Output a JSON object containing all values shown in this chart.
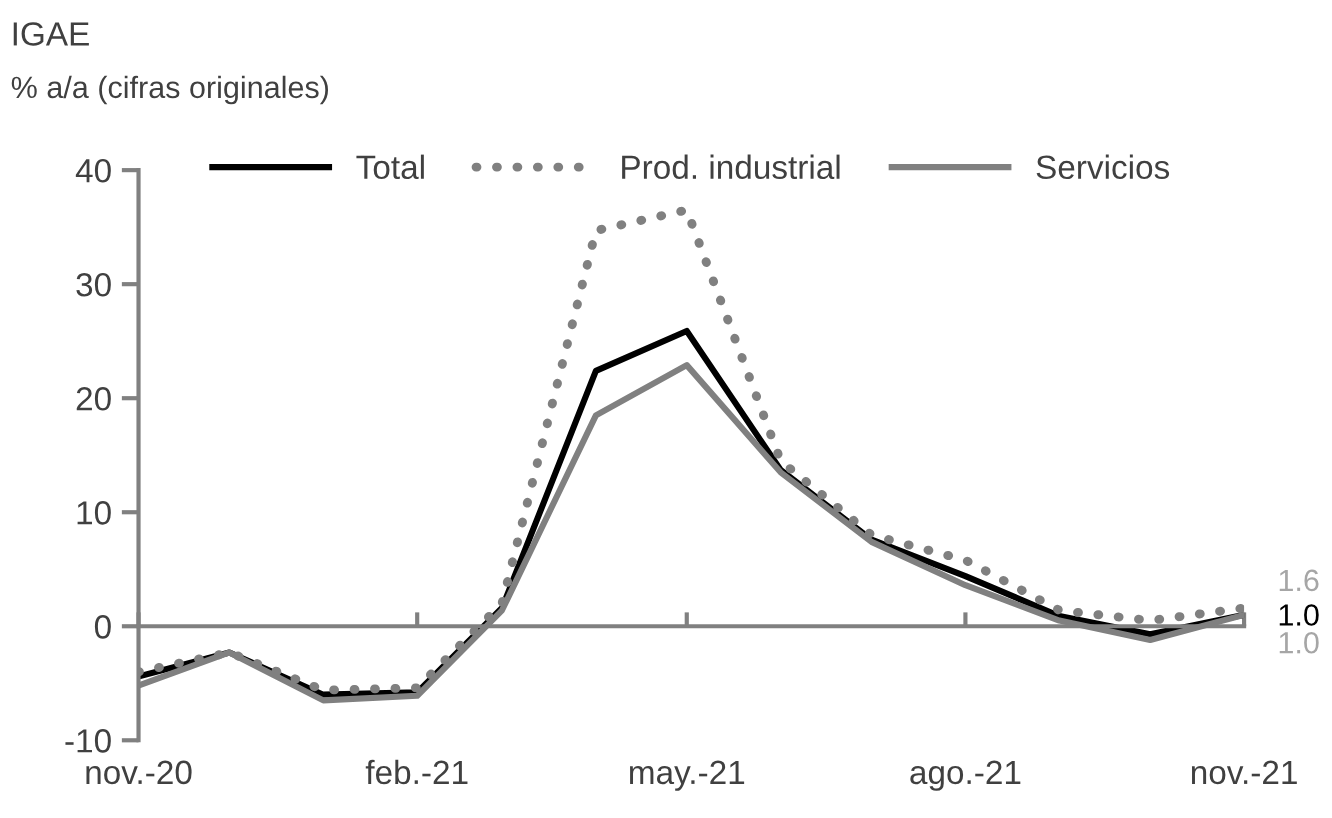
{
  "chart_data": {
    "type": "line",
    "title": "IGAE",
    "subtitle": "% a/a (cifras originales)",
    "x": [
      "2020-11",
      "2020-12",
      "2021-01",
      "2021-02",
      "2021-03",
      "2021-04",
      "2021-05",
      "2021-06",
      "2021-07",
      "2021-08",
      "2021-09",
      "2021-10",
      "2021-11"
    ],
    "series": [
      {
        "name": "Total",
        "color": "#000000",
        "line_style": "solid",
        "values": [
          -4.4,
          -2.3,
          -6.0,
          -5.8,
          1.6,
          22.4,
          25.9,
          13.7,
          7.6,
          4.4,
          0.9,
          -0.7,
          1.0
        ],
        "value_labels": [
          null,
          null,
          null,
          null,
          null,
          null,
          null,
          null,
          null,
          null,
          null,
          null,
          "1.0"
        ]
      },
      {
        "name": "Prod. industrial",
        "color": "#808080",
        "line_style": "dotted",
        "values": [
          -4.0,
          -2.3,
          -5.6,
          -5.4,
          2.0,
          34.7,
          36.5,
          14.5,
          8.0,
          5.8,
          1.4,
          0.5,
          1.6
        ],
        "value_labels": [
          null,
          null,
          null,
          null,
          null,
          null,
          null,
          null,
          null,
          null,
          null,
          null,
          "1.6"
        ]
      },
      {
        "name": "Servicios",
        "color": "#808080",
        "line_style": "solid",
        "values": [
          -5.2,
          -2.3,
          -6.5,
          -6.1,
          1.4,
          18.5,
          22.9,
          13.5,
          7.4,
          3.6,
          0.5,
          -1.2,
          1.0
        ],
        "value_labels": [
          null,
          null,
          null,
          null,
          null,
          null,
          null,
          null,
          null,
          null,
          null,
          null,
          "1.0"
        ]
      }
    ],
    "xlim": [
      "2020-11",
      "2021-11"
    ],
    "xticks": [
      {
        "value": "2020-11",
        "label": "nov.-20"
      },
      {
        "value": "2021-02",
        "label": "feb.-21"
      },
      {
        "value": "2021-05",
        "label": "may.-21"
      },
      {
        "value": "2021-08",
        "label": "ago.-21"
      },
      {
        "value": "2021-11",
        "label": "nov.-21"
      }
    ],
    "ylim": [
      -10,
      40
    ],
    "yticks": [
      -10,
      0,
      10,
      20,
      30,
      40
    ],
    "legend": "top",
    "marker": "none"
  }
}
